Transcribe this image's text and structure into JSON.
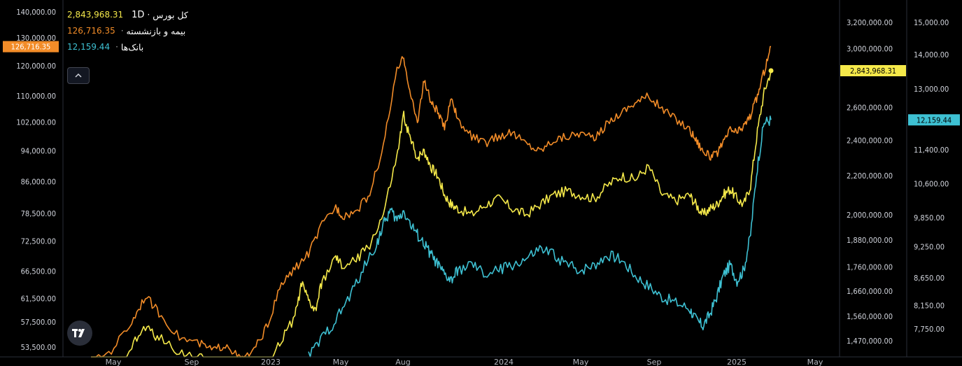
{
  "legend": [
    {
      "name": "کل بورس",
      "interval": "1D",
      "value": "2,843,968.31",
      "color": "#f5e94a"
    },
    {
      "name": "بیمه و بازنشسته",
      "value": "126,716.35",
      "color": "#f28c28"
    },
    {
      "name": "بانک‌ها",
      "value": "12,159.44",
      "color": "#3ec1d3"
    }
  ],
  "colors": {
    "background": "#000000",
    "series_total": "#f5e94a",
    "series_insurance": "#f28c28",
    "series_banks": "#3ec1d3"
  },
  "icons": {
    "collapse": "chevron-up-icon",
    "logo": "tradingview-logo-icon"
  },
  "price_tags": {
    "left": "126,716.35",
    "right1": "2,843,968.31",
    "right2": "12,159.44"
  },
  "chart_data": {
    "type": "line",
    "x_labels": [
      "May",
      "Sep",
      "2023",
      "May",
      "Aug",
      "2024",
      "May",
      "Sep",
      "2025",
      "May"
    ],
    "axes": {
      "left": {
        "ticks": [
          "140,000.00",
          "130,000.00",
          "120,000.00",
          "110,000.00",
          "102,000.00",
          "94,000.00",
          "86,000.00",
          "78,500.00",
          "72,500.00",
          "66,500.00",
          "61,500.00",
          "57,500.00",
          "53,500.00"
        ],
        "scale": "log"
      },
      "right1": {
        "ticks": [
          "3,200,000.00",
          "3,000,000.00",
          "2,600,000.00",
          "2,400,000.00",
          "2,200,000.00",
          "2,000,000.00",
          "1,880,000.00",
          "1,760,000.00",
          "1,660,000.00",
          "1,560,000.00",
          "1,470,000.00"
        ],
        "scale": "log"
      },
      "right2": {
        "ticks": [
          "15,000.00",
          "14,000.00",
          "13,000.00",
          "11,400.00",
          "10,600.00",
          "9,850.00",
          "9,250.00",
          "8,650.00",
          "8,150.00",
          "7,750.00"
        ],
        "scale": "log"
      }
    },
    "series": [
      {
        "name": "بیمه و بازنشسته",
        "axis": "left",
        "last": 126716.35,
        "points": [
          [
            0.0,
            51000
          ],
          [
            0.03,
            53000
          ],
          [
            0.06,
            57500
          ],
          [
            0.08,
            62000
          ],
          [
            0.1,
            59000
          ],
          [
            0.13,
            55000
          ],
          [
            0.16,
            54000
          ],
          [
            0.18,
            53000
          ],
          [
            0.2,
            54000
          ],
          [
            0.22,
            51500
          ],
          [
            0.24,
            53000
          ],
          [
            0.26,
            57000
          ],
          [
            0.28,
            64000
          ],
          [
            0.3,
            67000
          ],
          [
            0.32,
            70000
          ],
          [
            0.34,
            76000
          ],
          [
            0.36,
            80000
          ],
          [
            0.37,
            78000
          ],
          [
            0.39,
            79000
          ],
          [
            0.41,
            83000
          ],
          [
            0.43,
            95000
          ],
          [
            0.45,
            118000
          ],
          [
            0.46,
            123000
          ],
          [
            0.47,
            110000
          ],
          [
            0.48,
            102000
          ],
          [
            0.49,
            115000
          ],
          [
            0.5,
            108000
          ],
          [
            0.51,
            105000
          ],
          [
            0.52,
            100000
          ],
          [
            0.53,
            110000
          ],
          [
            0.54,
            102000
          ],
          [
            0.56,
            98000
          ],
          [
            0.58,
            96000
          ],
          [
            0.6,
            98000
          ],
          [
            0.62,
            99000
          ],
          [
            0.64,
            96000
          ],
          [
            0.66,
            94000
          ],
          [
            0.68,
            97000
          ],
          [
            0.7,
            98000
          ],
          [
            0.72,
            99000
          ],
          [
            0.74,
            97000
          ],
          [
            0.76,
            102000
          ],
          [
            0.78,
            105000
          ],
          [
            0.8,
            108000
          ],
          [
            0.82,
            110000
          ],
          [
            0.84,
            106000
          ],
          [
            0.86,
            103000
          ],
          [
            0.88,
            100000
          ],
          [
            0.89,
            97000
          ],
          [
            0.9,
            94000
          ],
          [
            0.91,
            92500
          ],
          [
            0.92,
            93000
          ],
          [
            0.93,
            96000
          ],
          [
            0.94,
            100000
          ],
          [
            0.95,
            99000
          ],
          [
            0.96,
            101000
          ],
          [
            0.97,
            104000
          ],
          [
            0.98,
            110000
          ],
          [
            0.99,
            118000
          ],
          [
            1.0,
            126716
          ]
        ]
      },
      {
        "name": "کل بورس",
        "axis": "right1",
        "last": 2843968.31,
        "points": [
          [
            0.0,
            1320000
          ],
          [
            0.03,
            1370000
          ],
          [
            0.06,
            1450000
          ],
          [
            0.08,
            1520000
          ],
          [
            0.1,
            1480000
          ],
          [
            0.13,
            1430000
          ],
          [
            0.16,
            1410000
          ],
          [
            0.18,
            1380000
          ],
          [
            0.2,
            1390000
          ],
          [
            0.22,
            1370000
          ],
          [
            0.24,
            1360000
          ],
          [
            0.26,
            1390000
          ],
          [
            0.28,
            1470000
          ],
          [
            0.3,
            1560000
          ],
          [
            0.31,
            1690000
          ],
          [
            0.32,
            1620000
          ],
          [
            0.33,
            1580000
          ],
          [
            0.34,
            1700000
          ],
          [
            0.36,
            1800000
          ],
          [
            0.37,
            1760000
          ],
          [
            0.39,
            1790000
          ],
          [
            0.41,
            1860000
          ],
          [
            0.43,
            2000000
          ],
          [
            0.45,
            2300000
          ],
          [
            0.46,
            2550000
          ],
          [
            0.47,
            2400000
          ],
          [
            0.48,
            2300000
          ],
          [
            0.49,
            2340000
          ],
          [
            0.5,
            2250000
          ],
          [
            0.51,
            2200000
          ],
          [
            0.52,
            2100000
          ],
          [
            0.53,
            2050000
          ],
          [
            0.54,
            2030000
          ],
          [
            0.56,
            2000000
          ],
          [
            0.58,
            2050000
          ],
          [
            0.6,
            2080000
          ],
          [
            0.62,
            2030000
          ],
          [
            0.64,
            2000000
          ],
          [
            0.66,
            2050000
          ],
          [
            0.68,
            2100000
          ],
          [
            0.7,
            2120000
          ],
          [
            0.72,
            2100000
          ],
          [
            0.74,
            2080000
          ],
          [
            0.76,
            2150000
          ],
          [
            0.78,
            2200000
          ],
          [
            0.8,
            2180000
          ],
          [
            0.82,
            2250000
          ],
          [
            0.84,
            2100000
          ],
          [
            0.86,
            2070000
          ],
          [
            0.88,
            2100000
          ],
          [
            0.89,
            2050000
          ],
          [
            0.9,
            2000000
          ],
          [
            0.91,
            2030000
          ],
          [
            0.92,
            2050000
          ],
          [
            0.93,
            2100000
          ],
          [
            0.94,
            2130000
          ],
          [
            0.95,
            2080000
          ],
          [
            0.96,
            2050000
          ],
          [
            0.97,
            2150000
          ],
          [
            0.98,
            2450000
          ],
          [
            0.99,
            2700000
          ],
          [
            1.0,
            2843968
          ]
        ]
      },
      {
        "name": "بانک‌ها",
        "axis": "right2",
        "last": 12159.44,
        "points": [
          [
            0.32,
            7300
          ],
          [
            0.34,
            7600
          ],
          [
            0.36,
            7900
          ],
          [
            0.38,
            8300
          ],
          [
            0.4,
            8800
          ],
          [
            0.42,
            9300
          ],
          [
            0.43,
            9700
          ],
          [
            0.44,
            10000
          ],
          [
            0.45,
            9800
          ],
          [
            0.46,
            10000
          ],
          [
            0.47,
            9700
          ],
          [
            0.48,
            9500
          ],
          [
            0.49,
            9300
          ],
          [
            0.5,
            9100
          ],
          [
            0.51,
            8900
          ],
          [
            0.52,
            8700
          ],
          [
            0.53,
            8600
          ],
          [
            0.54,
            8800
          ],
          [
            0.56,
            8900
          ],
          [
            0.58,
            8700
          ],
          [
            0.6,
            8800
          ],
          [
            0.62,
            8900
          ],
          [
            0.64,
            9000
          ],
          [
            0.66,
            9200
          ],
          [
            0.68,
            9100
          ],
          [
            0.7,
            8900
          ],
          [
            0.72,
            8800
          ],
          [
            0.74,
            8900
          ],
          [
            0.76,
            9100
          ],
          [
            0.78,
            9000
          ],
          [
            0.8,
            8700
          ],
          [
            0.82,
            8500
          ],
          [
            0.84,
            8300
          ],
          [
            0.86,
            8200
          ],
          [
            0.88,
            8100
          ],
          [
            0.89,
            7900
          ],
          [
            0.9,
            7800
          ],
          [
            0.91,
            8000
          ],
          [
            0.92,
            8300
          ],
          [
            0.93,
            8700
          ],
          [
            0.94,
            8900
          ],
          [
            0.95,
            8600
          ],
          [
            0.96,
            8800
          ],
          [
            0.97,
            9500
          ],
          [
            0.98,
            11000
          ],
          [
            0.99,
            12100
          ],
          [
            1.0,
            12159
          ]
        ]
      }
    ]
  }
}
